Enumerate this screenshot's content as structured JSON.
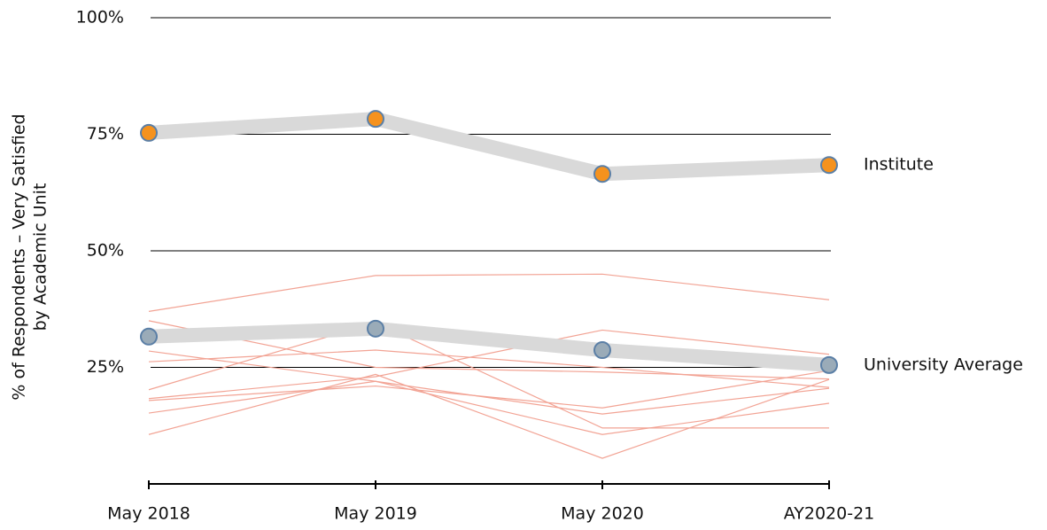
{
  "chart_data": {
    "type": "line",
    "ylabel": [
      "% of Respondents – Very Satisfied",
      "by Academic Unit"
    ],
    "categories": [
      "May 2018",
      "May 2019",
      "May 2020",
      "AY2020-21"
    ],
    "ylim": [
      0,
      100
    ],
    "yticks": [
      {
        "value": 25,
        "label": "25%"
      },
      {
        "value": 50,
        "label": "50%"
      },
      {
        "value": 75,
        "label": "75%"
      },
      {
        "value": 100,
        "label": "100%"
      }
    ],
    "grid": true,
    "series": [
      {
        "color": "#f2a394",
        "values": [
          37,
          44.7,
          45,
          39.5
        ]
      },
      {
        "color": "#f2a394",
        "values": [
          35,
          25,
          24,
          22.5
        ]
      },
      {
        "color": "#f2a394",
        "values": [
          28.5,
          22,
          15,
          20.5
        ]
      },
      {
        "color": "#f2a394",
        "values": [
          26.2,
          28.7,
          25,
          20.7
        ]
      },
      {
        "color": "#f2a394",
        "values": [
          20.2,
          34.6,
          12,
          12
        ]
      },
      {
        "color": "#f2a394",
        "values": [
          18.3,
          23,
          33,
          27.8
        ]
      },
      {
        "color": "#f2a394",
        "values": [
          17.9,
          21,
          16.3,
          24.3
        ]
      },
      {
        "color": "#f2a394",
        "values": [
          15.2,
          22,
          10.6,
          17.3
        ]
      },
      {
        "color": "#f2a394",
        "values": [
          10.6,
          23.5,
          5.5,
          22.4
        ]
      },
      {
        "name": "Institute",
        "color": "#f5921e",
        "values": [
          75.3,
          78.3,
          66.5,
          68.4
        ]
      },
      {
        "name": "University Average",
        "color": "#9aabb8",
        "values": [
          31.6,
          33.3,
          28.7,
          25.5
        ]
      }
    ]
  }
}
